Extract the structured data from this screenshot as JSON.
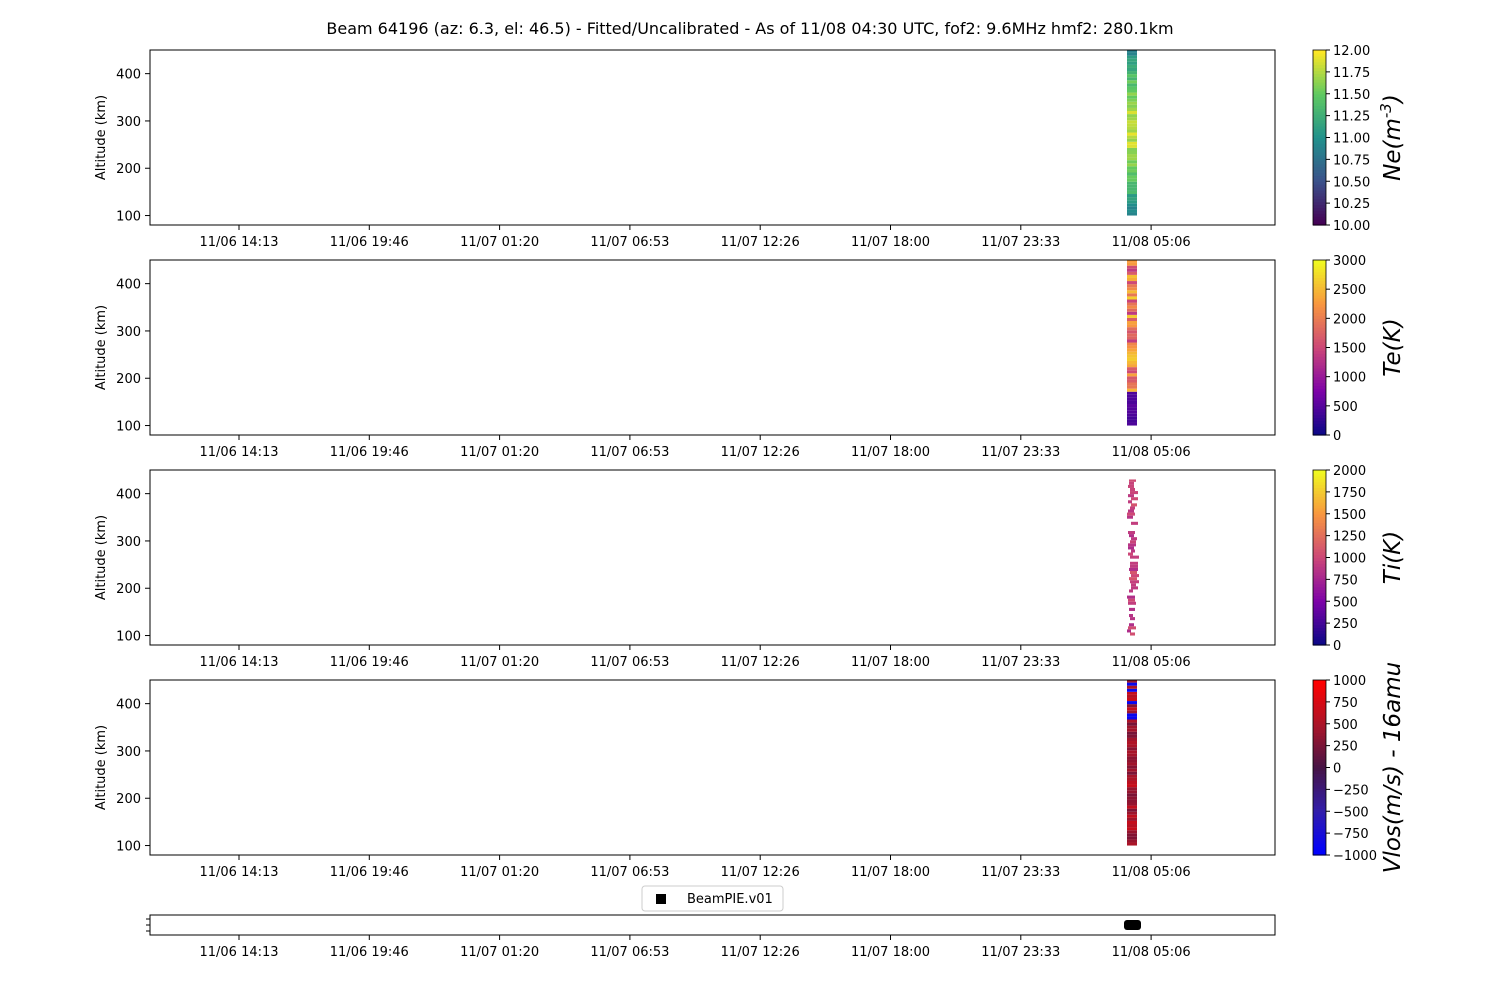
{
  "title": "Beam 64196 (az: 6.3, el: 46.5) - Fitted/Uncalibrated - As of 11/08 04:30 UTC, fof2: 9.6MHz  hmf2: 280.1km",
  "chart_data": [
    {
      "type": "heatmap",
      "ylabel": "Altitude (km)",
      "xticks": [
        "11/06 14:13",
        "11/06 19:46",
        "11/07 01:20",
        "11/07 06:53",
        "11/07 12:26",
        "11/07 18:00",
        "11/07 23:33",
        "11/08 05:06"
      ],
      "yticks": [
        100,
        200,
        300,
        400
      ],
      "ylim": [
        80,
        450
      ],
      "colorbar": {
        "label": "Ne(m^{-3})",
        "ticks": [
          "10.00",
          "10.25",
          "10.50",
          "10.75",
          "11.00",
          "11.25",
          "11.50",
          "11.75",
          "12.00"
        ],
        "range": [
          10,
          12
        ],
        "colormap": "viridis"
      },
      "data_time": "11/08 04:30",
      "altitude_range": [
        100,
        450
      ]
    },
    {
      "type": "heatmap",
      "ylabel": "Altitude (km)",
      "xticks": [
        "11/06 14:13",
        "11/06 19:46",
        "11/07 01:20",
        "11/07 06:53",
        "11/07 12:26",
        "11/07 18:00",
        "11/07 23:33",
        "11/08 05:06"
      ],
      "yticks": [
        100,
        200,
        300,
        400
      ],
      "ylim": [
        80,
        450
      ],
      "colorbar": {
        "label": "Te(K)",
        "ticks": [
          "0",
          "500",
          "1000",
          "1500",
          "2000",
          "2500",
          "3000"
        ],
        "range": [
          0,
          3000
        ],
        "colormap": "plasma"
      },
      "data_time": "11/08 04:30",
      "altitude_range": [
        100,
        450
      ]
    },
    {
      "type": "heatmap",
      "ylabel": "Altitude (km)",
      "xticks": [
        "11/06 14:13",
        "11/06 19:46",
        "11/07 01:20",
        "11/07 06:53",
        "11/07 12:26",
        "11/07 18:00",
        "11/07 23:33",
        "11/08 05:06"
      ],
      "yticks": [
        100,
        200,
        300,
        400
      ],
      "ylim": [
        80,
        450
      ],
      "colorbar": {
        "label": "Ti(K)",
        "ticks": [
          "0",
          "250",
          "500",
          "750",
          "1000",
          "1250",
          "1500",
          "1750",
          "2000"
        ],
        "range": [
          0,
          2000
        ],
        "colormap": "plasma"
      },
      "data_time": "11/08 04:30",
      "altitude_range": [
        100,
        430
      ]
    },
    {
      "type": "heatmap",
      "ylabel": "Altitude (km)",
      "xticks": [
        "11/06 14:13",
        "11/06 19:46",
        "11/07 01:20",
        "11/07 06:53",
        "11/07 12:26",
        "11/07 18:00",
        "11/07 23:33",
        "11/08 05:06"
      ],
      "yticks": [
        100,
        200,
        300,
        400
      ],
      "ylim": [
        80,
        450
      ],
      "colorbar": {
        "label": "Vlos(m/s) - 16amu",
        "ticks": [
          "−1000",
          "−750",
          "−500",
          "−250",
          "0",
          "250",
          "500",
          "750",
          "1000"
        ],
        "range": [
          -1000,
          1000
        ],
        "colormap": "blue-red"
      },
      "data_time": "11/08 04:30",
      "altitude_range": [
        100,
        450
      ]
    },
    {
      "type": "scatter",
      "legend": "BeamPIE.v01",
      "xticks": [
        "11/06 14:13",
        "11/06 19:46",
        "11/07 01:20",
        "11/07 06:53",
        "11/07 12:26",
        "11/07 18:00",
        "11/07 23:33",
        "11/08 05:06"
      ],
      "points": [
        "11/08 04:30"
      ]
    }
  ]
}
